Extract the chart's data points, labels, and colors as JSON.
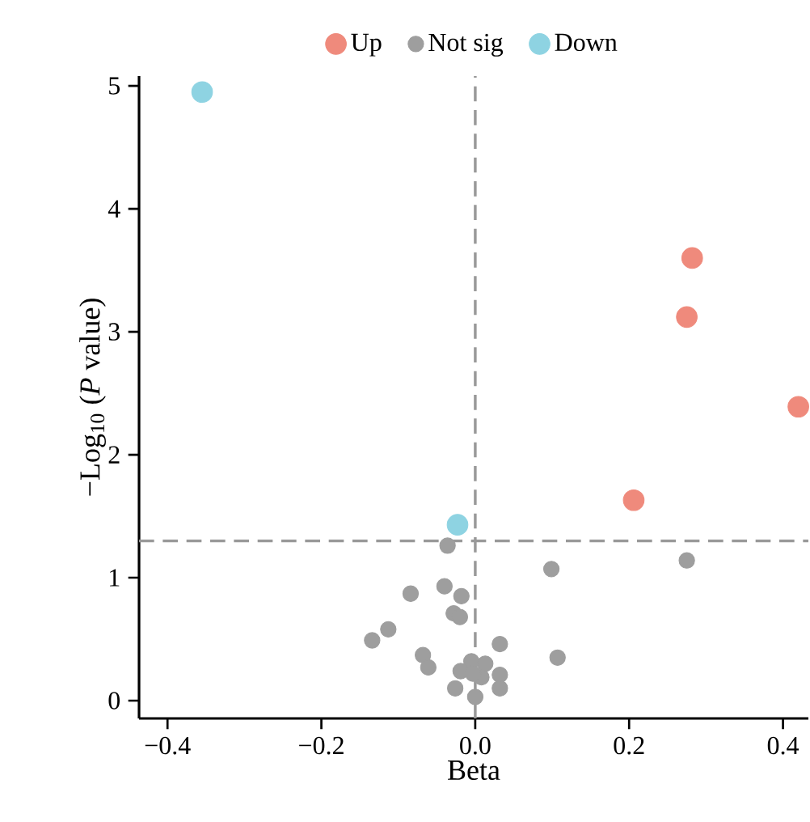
{
  "chart_data": {
    "type": "scatter",
    "xlabel": "Beta",
    "ylabel": "−Log$_{10}$ (*P* value)",
    "xlim": [
      -0.437,
      0.433
    ],
    "ylim": [
      -0.145,
      5.08
    ],
    "xticks": [
      {
        "value": -0.4,
        "label": "−0.4"
      },
      {
        "value": -0.2,
        "label": "−0.2"
      },
      {
        "value": 0,
        "label": "0.0"
      },
      {
        "value": 0.2,
        "label": "0.2"
      },
      {
        "value": 0.4,
        "label": "0.4"
      }
    ],
    "yticks": [
      0,
      1,
      2,
      3,
      4,
      5
    ],
    "legend": "top",
    "grid": false,
    "ref_lines": [
      {
        "axis": "y",
        "value": 1.3,
        "color": "#999999",
        "line_style": "dashed"
      },
      {
        "axis": "x",
        "value": 0,
        "color": "#999999",
        "line_style": "dashed"
      }
    ],
    "series": [
      {
        "name": "Up",
        "color": "#ef8a7c",
        "x": [
          0.282,
          0.275,
          0.42,
          0.206
        ],
        "values": [
          3.6,
          3.12,
          2.39,
          1.63
        ]
      },
      {
        "name": "Not sig",
        "color": "#9e9e9e",
        "x": [
          -0.036,
          0.275,
          0.099,
          -0.04,
          -0.084,
          -0.018,
          -0.028,
          -0.02,
          -0.113,
          -0.134,
          0.032,
          -0.068,
          -0.061,
          0.107,
          -0.005,
          0.013,
          -0.019,
          0.032,
          -0.026,
          0.032,
          0.0,
          0.008,
          -0.003
        ],
        "values": [
          1.26,
          1.14,
          1.07,
          0.93,
          0.87,
          0.85,
          0.71,
          0.68,
          0.58,
          0.49,
          0.46,
          0.37,
          0.27,
          0.35,
          0.32,
          0.3,
          0.24,
          0.21,
          0.1,
          0.1,
          0.03,
          0.19,
          0.22
        ]
      },
      {
        "name": "Down",
        "color": "#8ed3e2",
        "x": [
          -0.355,
          -0.023
        ],
        "values": [
          4.95,
          1.43
        ]
      }
    ]
  }
}
